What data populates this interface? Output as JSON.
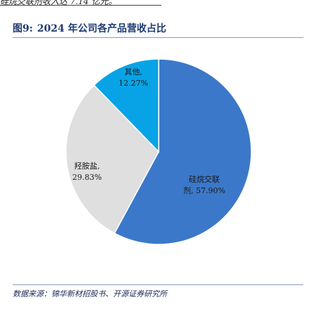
{
  "header": {
    "previous_text": "硅烷交联剂收入达 7.14 亿元。"
  },
  "figure": {
    "number": "图9:",
    "title": "2024 年公司各产品营收占比"
  },
  "source": "数据来源：锦华新材招股书、开源证券研究所",
  "colors": {
    "silane": "#3b78c9",
    "hydroxylamine": "#dfdfdf",
    "other": "#08a3e6"
  },
  "chart_data": {
    "type": "pie",
    "title": "2024 年公司各产品营收占比",
    "start_angle_deg": 0,
    "direction": "clockwise",
    "slices": [
      {
        "name_lines": [
          "硅烷交联",
          "剂, 57.90%"
        ],
        "value": 57.9,
        "color": "#3b78c9"
      },
      {
        "name_lines": [
          "羟胺盐,",
          "29.83%"
        ],
        "value": 29.83,
        "color": "#dfdfdf"
      },
      {
        "name_lines": [
          "其他,",
          "12.27%"
        ],
        "value": 12.27,
        "color": "#08a3e6"
      }
    ]
  }
}
